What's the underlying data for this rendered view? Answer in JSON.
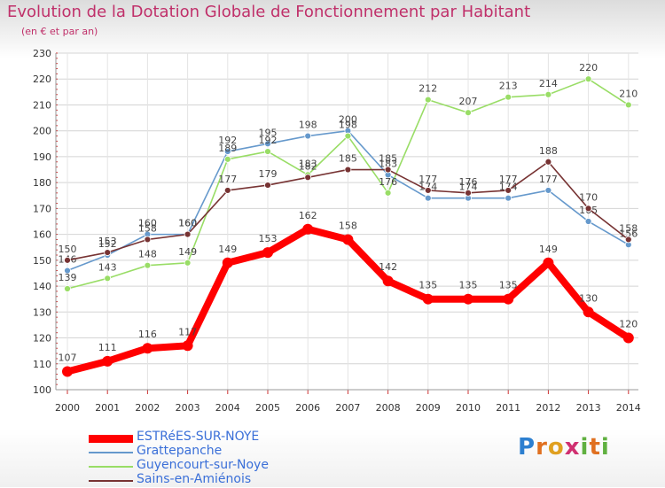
{
  "chart_data": {
    "type": "line",
    "title": "Evolution de la Dotation Globale de Fonctionnement par Habitant",
    "subtitle": "(en € et par an)",
    "xlabel": "",
    "ylabel": "",
    "ylim": [
      100,
      230
    ],
    "yticks": [
      100,
      110,
      120,
      130,
      140,
      150,
      160,
      170,
      180,
      190,
      200,
      210,
      220,
      230
    ],
    "grid": true,
    "legend_position": "bottom-left",
    "categories": [
      "2000",
      "2001",
      "2002",
      "2003",
      "2004",
      "2005",
      "2006",
      "2007",
      "2008",
      "2009",
      "2010",
      "2011",
      "2012",
      "2013",
      "2014"
    ],
    "series": [
      {
        "name": "ESTRéES-SUR-NOYE",
        "color": "#ff0000",
        "values": [
          107,
          111,
          116,
          117,
          149,
          153,
          162,
          158,
          142,
          135,
          135,
          135,
          149,
          130,
          120
        ]
      },
      {
        "name": "Grattepanche",
        "color": "#6699cc",
        "values": [
          146,
          152,
          160,
          160,
          192,
          195,
          198,
          200,
          183,
          174,
          174,
          174,
          177,
          165,
          156
        ]
      },
      {
        "name": "Guyencourt-sur-Noye",
        "color": "#99dd66",
        "values": [
          139,
          143,
          148,
          149,
          189,
          192,
          183,
          198,
          176,
          212,
          207,
          213,
          214,
          220,
          210
        ]
      },
      {
        "name": "Sains-en-Amiénois",
        "color": "#773333",
        "values": [
          150,
          153,
          158,
          160,
          177,
          179,
          182,
          185,
          185,
          177,
          176,
          177,
          188,
          170,
          158
        ]
      }
    ]
  },
  "brand": {
    "letters": [
      "P",
      "r",
      "o",
      "x",
      "i",
      "t",
      "i"
    ],
    "colors": [
      "#2c7fd0",
      "#e07020",
      "#e0a020",
      "#d03070",
      "#60b040",
      "#e07020",
      "#60b040"
    ]
  }
}
